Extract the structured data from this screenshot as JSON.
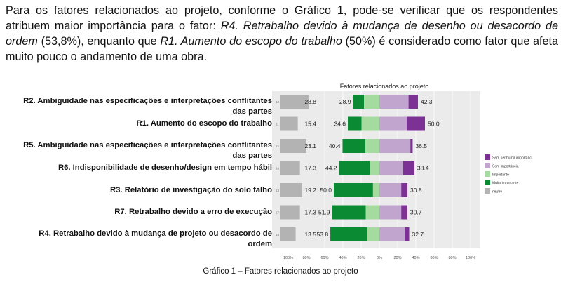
{
  "intro": {
    "p1": "Para os fatores relacionados ao projeto, conforme o Gráfico 1, pode-se verificar que os respondentes atribuem maior importância para o fator: ",
    "em1": "R4. Retrabalho devido à mudança de desenho ou desacordo de ordem",
    "p2": " (53,8%), enquanto que ",
    "em2": "R1. Aumento do escopo do trabalho",
    "p3": " (50%) é considerado como fator que afeta muito pouco o andamento de uma obra."
  },
  "caption": "Gráfico 1 – Fatores relacionados ao projeto",
  "colors": {
    "neutro": "#b3b3b3",
    "muito_importante": "#0a8a32",
    "importante": "#a6dba0",
    "sem_importancia": "#c2a5cf",
    "sem_nenhuma_importancia": "#7b3294",
    "panel": "#ebebeb"
  },
  "chart_data": {
    "type": "bar",
    "title": "Fatores relacionados ao projeto",
    "legend_position": "right",
    "legend": [
      "Sem nenhuma importânci",
      "Sem importância",
      "Importante",
      "Muito importante",
      "neutro"
    ],
    "x_ticks": [
      "100%",
      "80%",
      "60%",
      "40%",
      "20%",
      "0%",
      "20%",
      "40%",
      "60%",
      "80%",
      "100%"
    ],
    "rows": [
      {
        "label": "R2. Ambiguidade nas especificações e interpretações conflitantes das partes",
        "label_lines": [
          "R2. Ambiguidade nas especificações e interpretações conflitantes",
          "das partes"
        ],
        "code": "12",
        "neutral": 28.8,
        "important_total": 28.9,
        "muito": 12,
        "importante": 16.9,
        "unimportant_total": 42.3,
        "sem": 32,
        "sem_nenhuma": 10.3
      },
      {
        "label": "R1. Aumento do escopo do trabalho",
        "label_lines": [
          "R1. Aumento do escopo do trabalho"
        ],
        "code": "11",
        "neutral": 15.4,
        "important_total": 34.6,
        "muito": 15,
        "importante": 19.6,
        "unimportant_total": 50.0,
        "sem": 30,
        "sem_nenhuma": 20
      },
      {
        "label": "R5. Ambiguidade nas especificações e interpretações conflitantes das partes",
        "label_lines": [
          "R5. Ambiguidade nas especificações e interpretações conflitantes",
          "das partes"
        ],
        "code": "15",
        "neutral": 23.1,
        "important_total": 40.4,
        "muito": 25,
        "importante": 15.4,
        "unimportant_total": 36.5,
        "sem": 34,
        "sem_nenhuma": 2.5
      },
      {
        "label": "R6. Indisponibilidade de desenho/design em tempo hábil",
        "label_lines": [
          "R6. Indisponibilidade de desenho/design em tempo hábil"
        ],
        "code": "16",
        "neutral": 17.3,
        "important_total": 44.2,
        "muito": 34,
        "importante": 10.2,
        "unimportant_total": 38.4,
        "sem": 26,
        "sem_nenhuma": 12.4
      },
      {
        "label": "R3. Relatório de investigação do solo falho",
        "label_lines": [
          "R3. Relatório de investigação do solo falho"
        ],
        "code": "13",
        "neutral": 19.2,
        "important_total": 50.0,
        "muito": 43,
        "importante": 7,
        "unimportant_total": 30.8,
        "sem": 24,
        "sem_nenhuma": 6.8
      },
      {
        "label": "R7. Retrabalho devido a erro de execução",
        "label_lines": [
          "R7. Retrabalho devido a erro de execução"
        ],
        "code": "17",
        "neutral": 17.3,
        "important_total": 51.9,
        "muito": 37,
        "importante": 14.9,
        "unimportant_total": 30.7,
        "sem": 24,
        "sem_nenhuma": 6.7
      },
      {
        "label": "R4. Retrabalho devido à mudança de projeto ou desacordo de ordem",
        "label_lines": [
          "R4. Retrabalho devido à mudança de projeto ou desacordo de",
          "ordem"
        ],
        "code": "14",
        "neutral": 13.5,
        "important_total": 53.8,
        "muito": 40,
        "importante": 13.8,
        "unimportant_total": 32.7,
        "sem": 28,
        "sem_nenhuma": 4.7
      }
    ]
  }
}
